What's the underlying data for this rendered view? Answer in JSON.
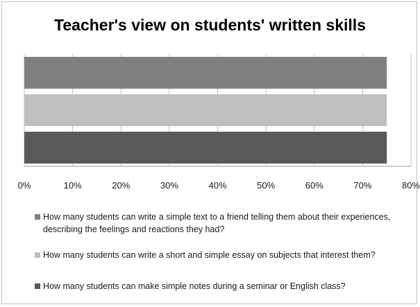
{
  "chart_data": {
    "type": "bar",
    "orientation": "horizontal",
    "title": "Teacher's view on students' written skills",
    "xlim": [
      0,
      0.8
    ],
    "x_ticks": [
      "0%",
      "10%",
      "20%",
      "30%",
      "40%",
      "50%",
      "60%",
      "70%",
      "80%"
    ],
    "x_tick_values": [
      0,
      0.1,
      0.2,
      0.3,
      0.4,
      0.5,
      0.6,
      0.7,
      0.8
    ],
    "grid": "vertical",
    "legend_position": "bottom",
    "series": [
      {
        "name": "How many students can write a simple text to a friend telling them about their experiences, describing the feelings and reactions they had?",
        "value": 0.75,
        "color": "#7f7f7f"
      },
      {
        "name": "How many students can write a short and simple essay on subjects that interest them?",
        "value": 0.75,
        "color": "#bfbfbf"
      },
      {
        "name": "How many students can make simple notes during a seminar or English class?",
        "value": 0.75,
        "color": "#595959"
      }
    ]
  }
}
